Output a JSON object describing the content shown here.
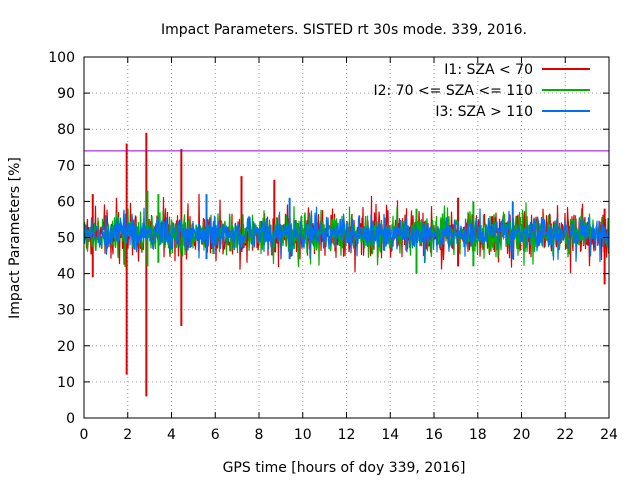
{
  "chart_data": {
    "type": "line",
    "title": "Impact Parameters. SISTED rt 30s mode. 339, 2016.",
    "xlabel": "GPS time [hours of doy 339, 2016]",
    "ylabel": "Impact Parameters [%]",
    "xlim": [
      0,
      24
    ],
    "ylim": [
      0,
      100
    ],
    "xticks": [
      0,
      2,
      4,
      6,
      8,
      10,
      12,
      14,
      16,
      18,
      20,
      22,
      24
    ],
    "yticks": [
      0,
      10,
      20,
      30,
      40,
      50,
      60,
      70,
      80,
      90,
      100
    ],
    "grid": true,
    "legend_position": "top-right",
    "reference_line": {
      "y": 74,
      "color": "#9400d3"
    },
    "series": [
      {
        "name": "I1: SZA < 70",
        "color": "#e00000",
        "center": 51,
        "typical_range": [
          44,
          58
        ],
        "x_range": [
          0,
          24
        ],
        "spikes": [
          {
            "x": 1.95,
            "low": 12,
            "high": 76
          },
          {
            "x": 2.85,
            "low": 6,
            "high": 79
          },
          {
            "x": 4.45,
            "low": 25.5,
            "high": 74.5
          },
          {
            "x": 7.2,
            "low": 46,
            "high": 67
          },
          {
            "x": 8.7,
            "low": 46,
            "high": 66
          },
          {
            "x": 0.4,
            "low": 39,
            "high": 62
          },
          {
            "x": 23.8,
            "low": 37,
            "high": 58
          },
          {
            "x": 17.1,
            "low": 42,
            "high": 61
          }
        ]
      },
      {
        "name": "I2: 70 <= SZA <= 110",
        "color": "#00b000",
        "center": 51,
        "typical_range": [
          45,
          57
        ],
        "x_range": [
          0,
          24
        ],
        "spikes": [
          {
            "x": 2.9,
            "low": 42,
            "high": 63
          },
          {
            "x": 3.4,
            "low": 43,
            "high": 62
          },
          {
            "x": 15.2,
            "low": 40,
            "high": 58
          },
          {
            "x": 17.8,
            "low": 42,
            "high": 60
          }
        ]
      },
      {
        "name": "I3: SZA > 110",
        "color": "#0070f0",
        "center": 51,
        "typical_range": [
          46,
          56
        ],
        "x_range": [
          0,
          24
        ],
        "spikes": [
          {
            "x": 5.6,
            "low": 44,
            "high": 62
          },
          {
            "x": 9.4,
            "low": 44,
            "high": 61
          },
          {
            "x": 19.6,
            "low": 44,
            "high": 60
          }
        ]
      }
    ]
  }
}
